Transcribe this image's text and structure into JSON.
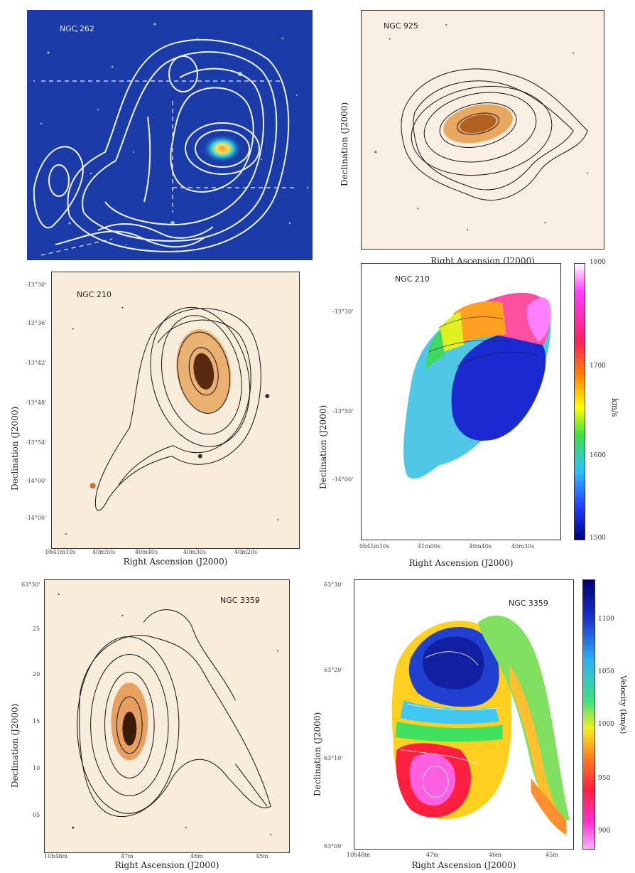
{
  "panels": {
    "ngc262": {
      "name": "NGC 262"
    },
    "ngc925": {
      "name": "NGC 925",
      "xlabel": "Right Ascension (J2000)",
      "ylabel": "Declination (J2000)"
    },
    "ngc210_map": {
      "name": "NGC 210",
      "xlabel": "Right Ascension (J2000)",
      "ylabel": "Declination (J2000)",
      "yticks": [
        "-13°30'",
        "-13°36'",
        "-13°42'",
        "-13°48'",
        "-13°54'",
        "-14°00'",
        "-14°06'"
      ],
      "xticks": [
        "0h41m10s",
        "40m50s",
        "40m40s",
        "40m30s",
        "40m20s"
      ]
    },
    "ngc210_vel": {
      "name": "NGC 210",
      "xlabel": "Right Ascension (J2000)",
      "ylabel": "Declination (J2000)",
      "yticks": [
        "-13°30'",
        "-13°50'",
        "-14°00'"
      ],
      "xticks": [
        "0h41m10s",
        "41m00s",
        "40m40s",
        "40m30s"
      ],
      "cbar_ticks": [
        "1800",
        "1700",
        "1600",
        "1500"
      ],
      "unit": "km/s"
    },
    "ngc3359_map": {
      "name": "NGC 3359",
      "xlabel": "Right Ascension (J2000)",
      "ylabel": "Declination (J2000)",
      "yticks": [
        "63°30'",
        "25",
        "20",
        "15",
        "10",
        "05"
      ],
      "xticks": [
        "10h48m",
        "47m",
        "46m",
        "45m"
      ]
    },
    "ngc3359_vel": {
      "name": "NGC 3359",
      "xlabel": "Right Ascension (J2000)",
      "ylabel": "Declination (J2000)",
      "yticks": [
        "63°30'",
        "63°20'",
        "63°10'",
        "63°00'"
      ],
      "xticks": [
        "10h48m",
        "47m",
        "46m",
        "45m"
      ],
      "cbar_ticks": [
        "1100",
        "1050",
        "1000",
        "950",
        "900"
      ],
      "unit": "Velocity (km/s)"
    }
  },
  "colors": {
    "blue_bg": "#1a3aa8",
    "paper_bg": "#f7ecdc",
    "contour_dark": "#111111",
    "contour_white": "#f0f4ff"
  }
}
